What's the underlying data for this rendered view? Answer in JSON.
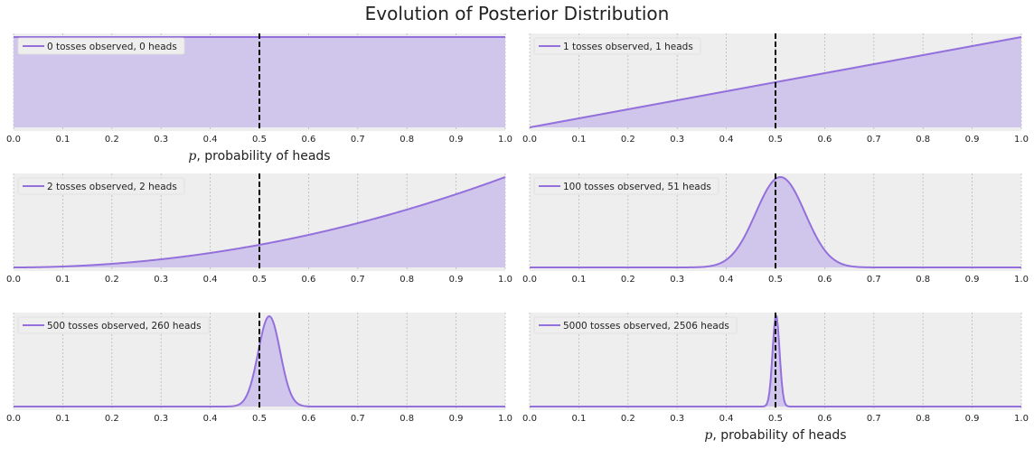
{
  "figure": {
    "title": "Evolution of Posterior Distribution"
  },
  "style": {
    "series_color": "#9370DB",
    "fill_color": "#D0C5EA",
    "axes_background": "#EEEEEE",
    "grid_color": "#BBBBBB",
    "vline_color": "#000000"
  },
  "xlabel_prefix": "p",
  "xlabel_text": ", probability of heads",
  "chart_data": [
    {
      "type": "area",
      "n": 0,
      "heads": 0,
      "legend": "0 tosses observed, 0 heads",
      "xlim": [
        0,
        1
      ],
      "xticks": [
        "0.0",
        "0.1",
        "0.2",
        "0.3",
        "0.4",
        "0.5",
        "0.6",
        "0.7",
        "0.8",
        "0.9",
        "1.0"
      ],
      "vline_x": 0.5,
      "xlabel": "p, probability of heads",
      "legend_position": "upper-left",
      "grid": "x"
    },
    {
      "type": "area",
      "n": 1,
      "heads": 1,
      "legend": "1 tosses observed, 1 heads",
      "xlim": [
        0,
        1
      ],
      "xticks": [
        "0.0",
        "0.1",
        "0.2",
        "0.3",
        "0.4",
        "0.5",
        "0.6",
        "0.7",
        "0.8",
        "0.9",
        "1.0"
      ],
      "vline_x": 0.5,
      "xlabel": "",
      "legend_position": "upper-left",
      "grid": "x"
    },
    {
      "type": "area",
      "n": 2,
      "heads": 2,
      "legend": "2 tosses observed, 2 heads",
      "xlim": [
        0,
        1
      ],
      "xticks": [
        "0.0",
        "0.1",
        "0.2",
        "0.3",
        "0.4",
        "0.5",
        "0.6",
        "0.7",
        "0.8",
        "0.9",
        "1.0"
      ],
      "vline_x": 0.5,
      "xlabel": "",
      "legend_position": "upper-left",
      "grid": "x"
    },
    {
      "type": "area",
      "n": 100,
      "heads": 51,
      "legend": "100 tosses observed, 51 heads",
      "xlim": [
        0,
        1
      ],
      "xticks": [
        "0.0",
        "0.1",
        "0.2",
        "0.3",
        "0.4",
        "0.5",
        "0.6",
        "0.7",
        "0.8",
        "0.9",
        "1.0"
      ],
      "vline_x": 0.5,
      "xlabel": "",
      "legend_position": "upper-left",
      "grid": "x"
    },
    {
      "type": "area",
      "n": 500,
      "heads": 260,
      "legend": "500 tosses observed, 260 heads",
      "xlim": [
        0,
        1
      ],
      "xticks": [
        "0.0",
        "0.1",
        "0.2",
        "0.3",
        "0.4",
        "0.5",
        "0.6",
        "0.7",
        "0.8",
        "0.9",
        "1.0"
      ],
      "vline_x": 0.5,
      "xlabel": "",
      "legend_position": "upper-left",
      "grid": "x"
    },
    {
      "type": "area",
      "n": 5000,
      "heads": 2506,
      "legend": "5000 tosses observed, 2506 heads",
      "xlim": [
        0,
        1
      ],
      "xticks": [
        "0.0",
        "0.1",
        "0.2",
        "0.3",
        "0.4",
        "0.5",
        "0.6",
        "0.7",
        "0.8",
        "0.9",
        "1.0"
      ],
      "vline_x": 0.5,
      "xlabel": "p, probability of heads",
      "legend_position": "upper-left",
      "grid": "x"
    }
  ]
}
